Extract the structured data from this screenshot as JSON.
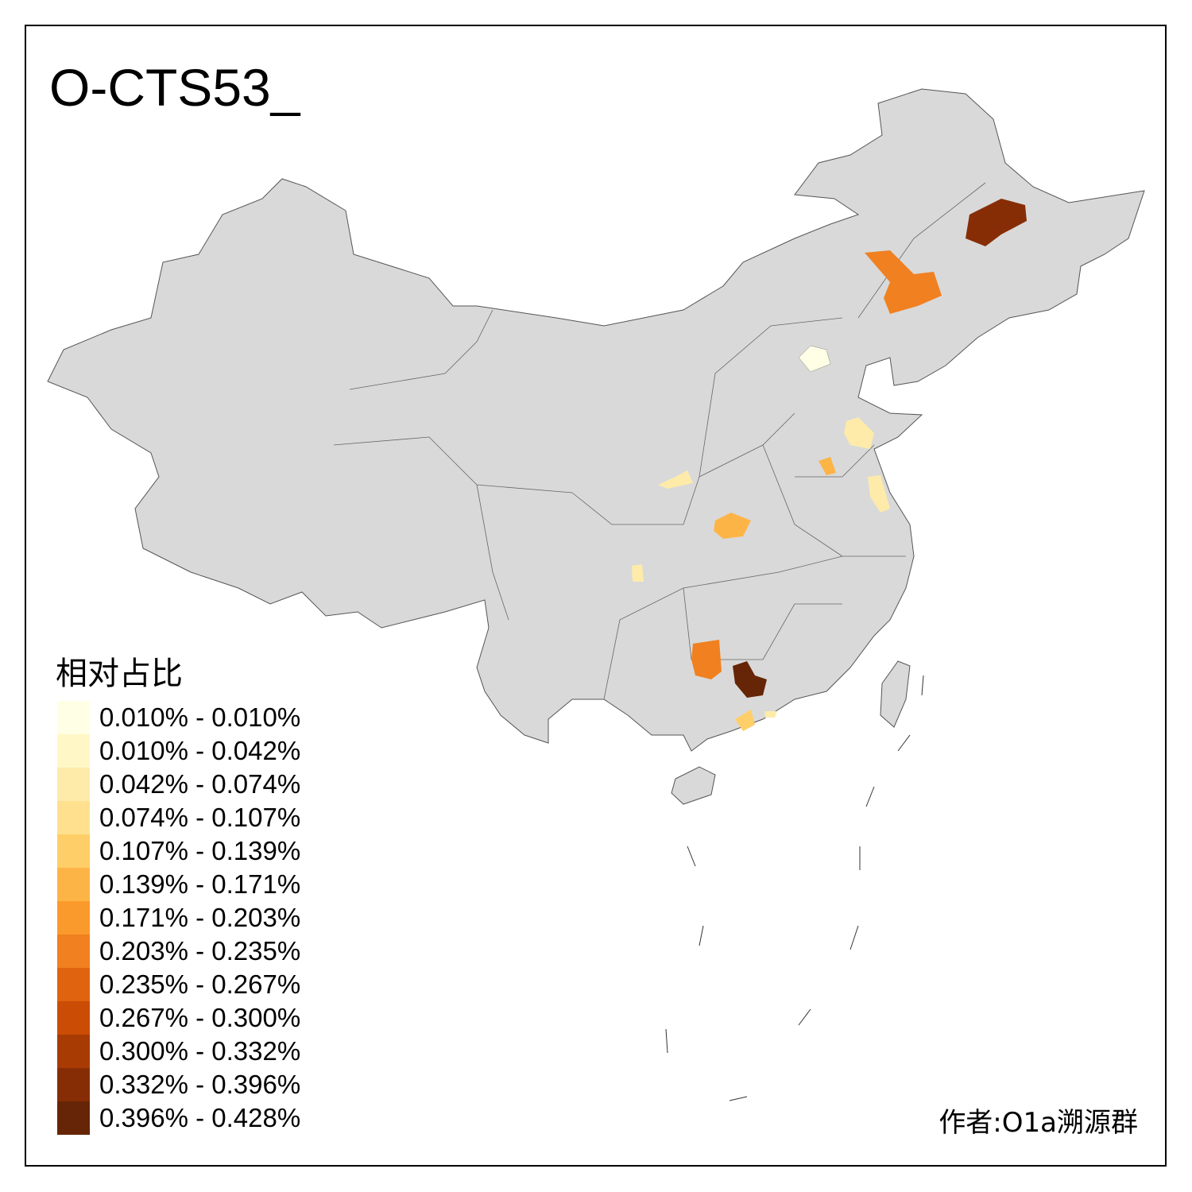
{
  "title": "O-CTS53_",
  "legend": {
    "title": "相对占比",
    "items": [
      {
        "label": "0.010% - 0.010%",
        "color": "#FFFFE5"
      },
      {
        "label": "0.010% - 0.042%",
        "color": "#FFF7C6"
      },
      {
        "label": "0.042% - 0.074%",
        "color": "#FEEBAA"
      },
      {
        "label": "0.074% - 0.107%",
        "color": "#FEE08F"
      },
      {
        "label": "0.107% - 0.139%",
        "color": "#FECE68"
      },
      {
        "label": "0.139% - 0.171%",
        "color": "#FDB446"
      },
      {
        "label": "0.171% - 0.203%",
        "color": "#FB9A2C"
      },
      {
        "label": "0.203% - 0.235%",
        "color": "#F08020"
      },
      {
        "label": "0.235% - 0.267%",
        "color": "#E0640F"
      },
      {
        "label": "0.267% - 0.300%",
        "color": "#CA4C05"
      },
      {
        "label": "0.300% - 0.332%",
        "color": "#A83B04"
      },
      {
        "label": "0.332% - 0.396%",
        "color": "#872D05"
      },
      {
        "label": "0.396% - 0.428%",
        "color": "#662506"
      }
    ]
  },
  "base_color": "#D9D9D9",
  "author": "作者:O1a溯源群"
}
